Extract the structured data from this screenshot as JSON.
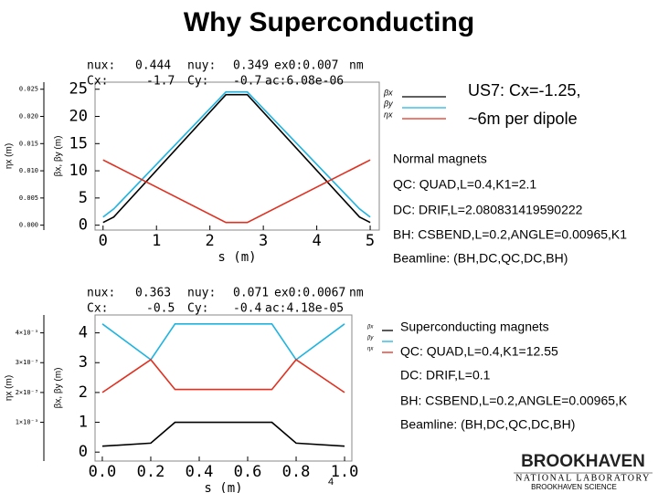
{
  "title": "Why Superconducting",
  "notes_top": [
    "US7: Cx=-1.25,",
    "~6m per dipole"
  ],
  "notes_normal": [
    "Normal magnets",
    "QC: QUAD,L=0.4,K1=2.1",
    "DC: DRIF,L=2.080831419590222",
    "BH: CSBEND,L=0.2,ANGLE=0.00965,K1",
    "Beamline: (BH,DC,QC,DC,BH)"
  ],
  "notes_sc": [
    "Superconducting magnets",
    "QC: QUAD,L=0.4,K1=12.55",
    "DC: DRIF,L=0.1",
    "BH: CSBEND,L=0.2,ANGLE=0.00965,K",
    "Beamline: (BH,DC,QC,DC,BH)"
  ],
  "page_number": "4",
  "logo": [
    "BROOKHAVEN",
    "NATIONAL LABORATORY",
    "BROOKHAVEN SCIENCE"
  ],
  "chart_data": [
    {
      "type": "line",
      "header": [
        [
          "nux:",
          "0.444",
          "nuy:",
          "0.349",
          "ex0:0.007",
          "nm"
        ],
        [
          "Cx:",
          "-1.7",
          "Cy:",
          "-0.7",
          "ac:6.08e-06"
        ]
      ],
      "xlabel": "s (m)",
      "ylabel": "βx, βy (m)",
      "y2label": "ηx (m)",
      "xlim": [
        -0.15,
        5.17
      ],
      "xticks": [
        0,
        1,
        2,
        3,
        4,
        5
      ],
      "ylim": [
        -0.9,
        26.3
      ],
      "yticks": [
        0,
        5,
        10,
        15,
        20,
        25
      ],
      "y2lim": [
        -0.0009,
        0.0263
      ],
      "y2ticks": [
        {
          "value": 0,
          "label": "0.000"
        },
        {
          "value": 0.005,
          "label": "0.005"
        },
        {
          "value": 0.01,
          "label": "0.010"
        },
        {
          "value": 0.015,
          "label": "0.015"
        },
        {
          "value": 0.02,
          "label": "0.020"
        },
        {
          "value": 0.025,
          "label": "0.025"
        }
      ],
      "x": [
        0,
        0.2,
        2.3,
        2.7,
        4.8,
        5
      ],
      "series": [
        {
          "name": "βx",
          "color": "#000000",
          "values": [
            0.5,
            1.5,
            24,
            24,
            1.5,
            0.5
          ]
        },
        {
          "name": "βy",
          "color": "#1fb4e0",
          "values": [
            1.5,
            3,
            24.5,
            24.5,
            3,
            1.5
          ]
        },
        {
          "name": "ηx",
          "color": "#e03020",
          "axis": "y2",
          "values": [
            0.012,
            0.011,
            0.0005,
            0.0005,
            0.011,
            0.012
          ]
        }
      ]
    },
    {
      "type": "line",
      "header": [
        [
          "nux:",
          "0.363",
          "nuy:",
          "0.071",
          "ex0:0.0067",
          "nm"
        ],
        [
          "Cx:",
          "-0.5",
          "Cy:",
          "-0.4",
          "ac:4.18e-05"
        ]
      ],
      "xlabel": "s (m)",
      "ylabel": "βx, βy (m)",
      "y2label": "ηx (m)",
      "xlim": [
        -0.03,
        1.03
      ],
      "xticks": [
        {
          "value": 0,
          "label": "0.0"
        },
        0.2,
        0.4,
        0.6,
        0.8,
        {
          "value": 1,
          "label": "1.0"
        }
      ],
      "ylim": [
        -0.3,
        4.6
      ],
      "yticks": [
        0,
        1,
        2,
        3,
        4
      ],
      "y2lim": [
        -0.0003,
        0.0046
      ],
      "y2ticks": [
        {
          "value": 0.001,
          "label": "1×10⁻³"
        },
        {
          "value": 0.002,
          "label": "2×10⁻³"
        },
        {
          "value": 0.003,
          "label": "3×10⁻³"
        },
        {
          "value": 0.004,
          "label": "4×10⁻³"
        }
      ],
      "x": [
        0,
        0.2,
        0.3,
        0.7,
        0.8,
        1
      ],
      "series": [
        {
          "name": "βx",
          "color": "#000000",
          "values": [
            0.2,
            0.3,
            1,
            1,
            0.3,
            0.2
          ]
        },
        {
          "name": "βy",
          "color": "#1fb4e0",
          "values": [
            4.3,
            3.1,
            4.3,
            4.3,
            3.1,
            4.3
          ]
        },
        {
          "name": "ηx",
          "color": "#e03020",
          "axis": "y2",
          "values": [
            0.002,
            0.0031,
            0.0021,
            0.0021,
            0.0031,
            0.002
          ]
        }
      ]
    }
  ]
}
